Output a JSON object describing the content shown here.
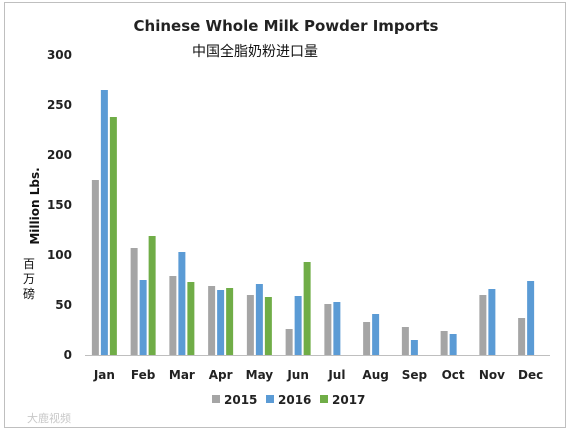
{
  "chart_data": {
    "type": "bar",
    "title": "Chinese Whole Milk Powder Imports",
    "subtitle": "中国全脂奶粉进口量",
    "ylabel": "Million Lbs.",
    "ylabel_cn": "百万磅",
    "ylim": [
      0,
      300
    ],
    "yticks": [
      0,
      50,
      100,
      150,
      200,
      250,
      300
    ],
    "grid": false,
    "legend_position": "bottom",
    "categories": [
      "Jan",
      "Feb",
      "Mar",
      "Apr",
      "May",
      "Jun",
      "Jul",
      "Aug",
      "Sep",
      "Oct",
      "Nov",
      "Dec"
    ],
    "series": [
      {
        "name": "2015",
        "color": "#a5a5a5",
        "values": [
          175,
          107,
          79,
          69,
          60,
          26,
          51,
          33,
          28,
          24,
          60,
          37
        ]
      },
      {
        "name": "2016",
        "color": "#5b9bd5",
        "values": [
          265,
          75,
          103,
          65,
          71,
          59,
          53,
          41,
          15,
          21,
          66,
          74
        ]
      },
      {
        "name": "2017",
        "color": "#70ad47",
        "values": [
          238,
          119,
          73,
          67,
          58,
          93,
          null,
          null,
          null,
          null,
          null,
          null
        ]
      }
    ]
  },
  "watermark": "大鹿视频"
}
